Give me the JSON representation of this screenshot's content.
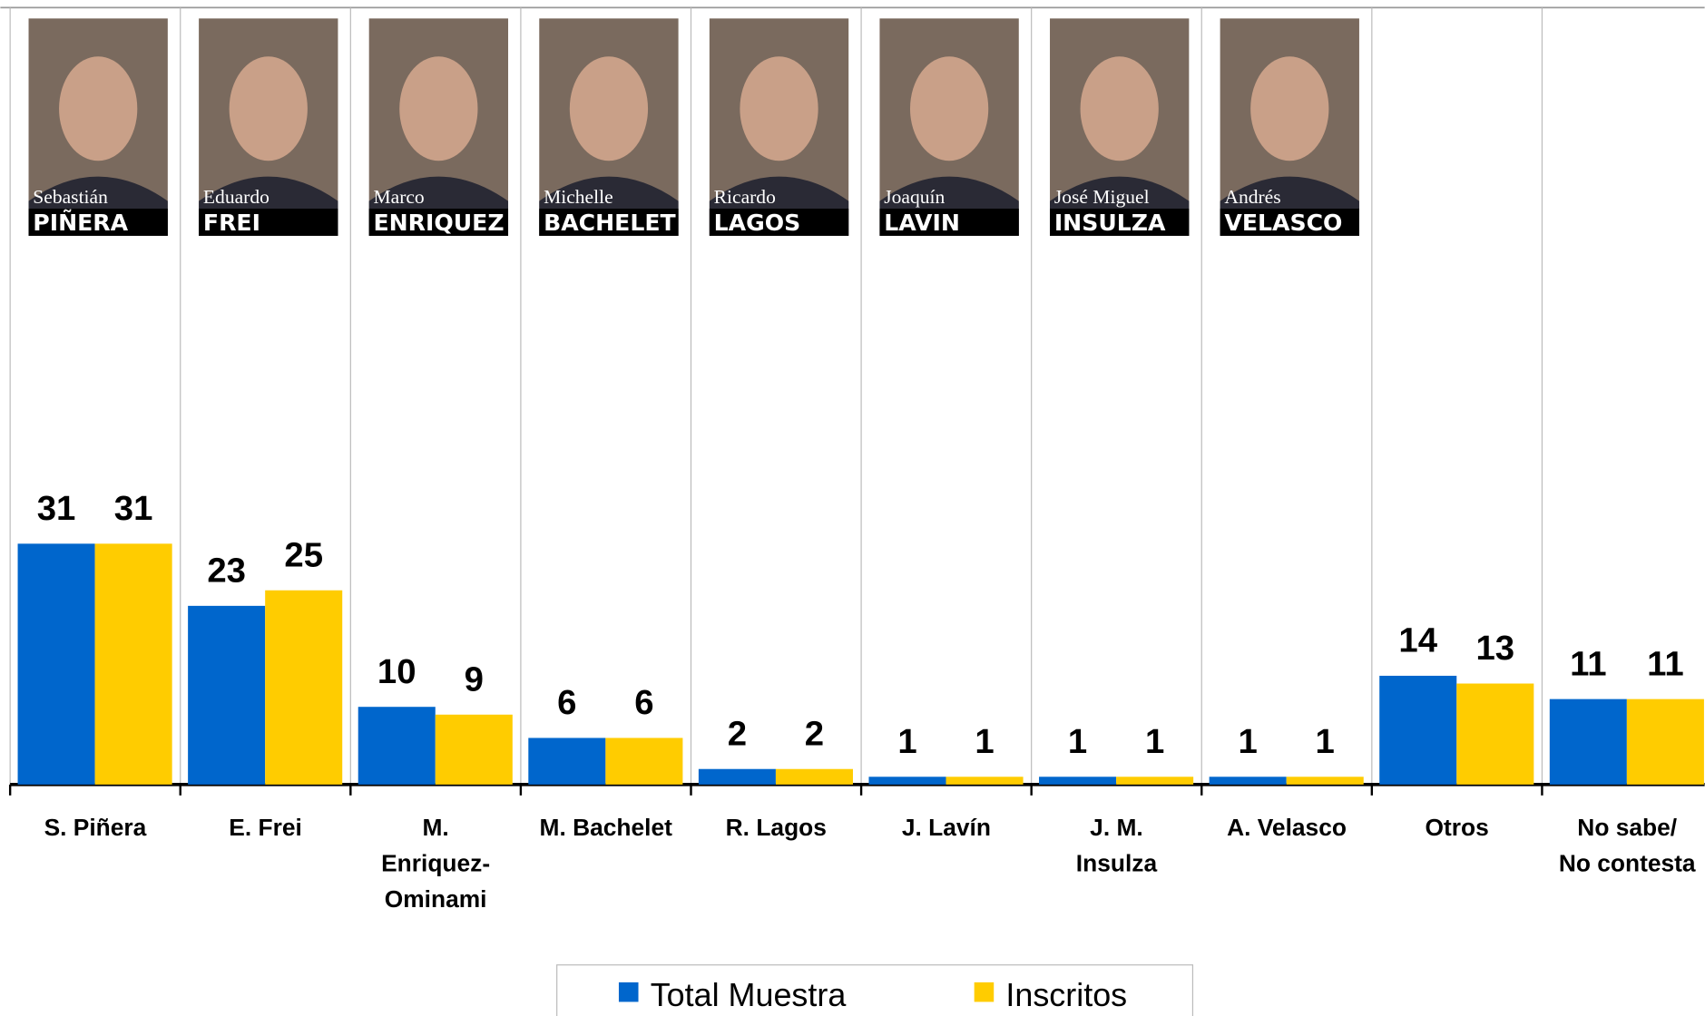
{
  "chart_data": {
    "type": "bar",
    "categories": [
      "S. Piñera",
      "E. Frei",
      "M.\nEnriquez-\nOminami",
      "M. Bachelet",
      "R. Lagos",
      "J. Lavín",
      "J. M.\nInsulza",
      "A. Velasco",
      "Otros",
      "No sabe/\nNo contesta"
    ],
    "series": [
      {
        "name": "Total Muestra",
        "color": "#0066cc",
        "values": [
          31,
          23,
          10,
          6,
          2,
          1,
          1,
          1,
          14,
          11
        ]
      },
      {
        "name": "Inscritos",
        "color": "#ffcc00",
        "values": [
          31,
          25,
          9,
          6,
          2,
          1,
          1,
          1,
          13,
          11
        ]
      }
    ],
    "ylim": [
      0,
      100
    ]
  },
  "photos": [
    {
      "first": "Sebastián",
      "last": "PIÑERA"
    },
    {
      "first": "Eduardo",
      "last": "FREI"
    },
    {
      "first": "Marco",
      "last": "ENRIQUEZ"
    },
    {
      "first": "Michelle",
      "last": "BACHELET"
    },
    {
      "first": "Ricardo",
      "last": "LAGOS"
    },
    {
      "first": "Joaquín",
      "last": "LAVIN"
    },
    {
      "first": "José Miguel",
      "last": "INSULZA"
    },
    {
      "first": "Andrés",
      "last": "VELASCO"
    }
  ]
}
